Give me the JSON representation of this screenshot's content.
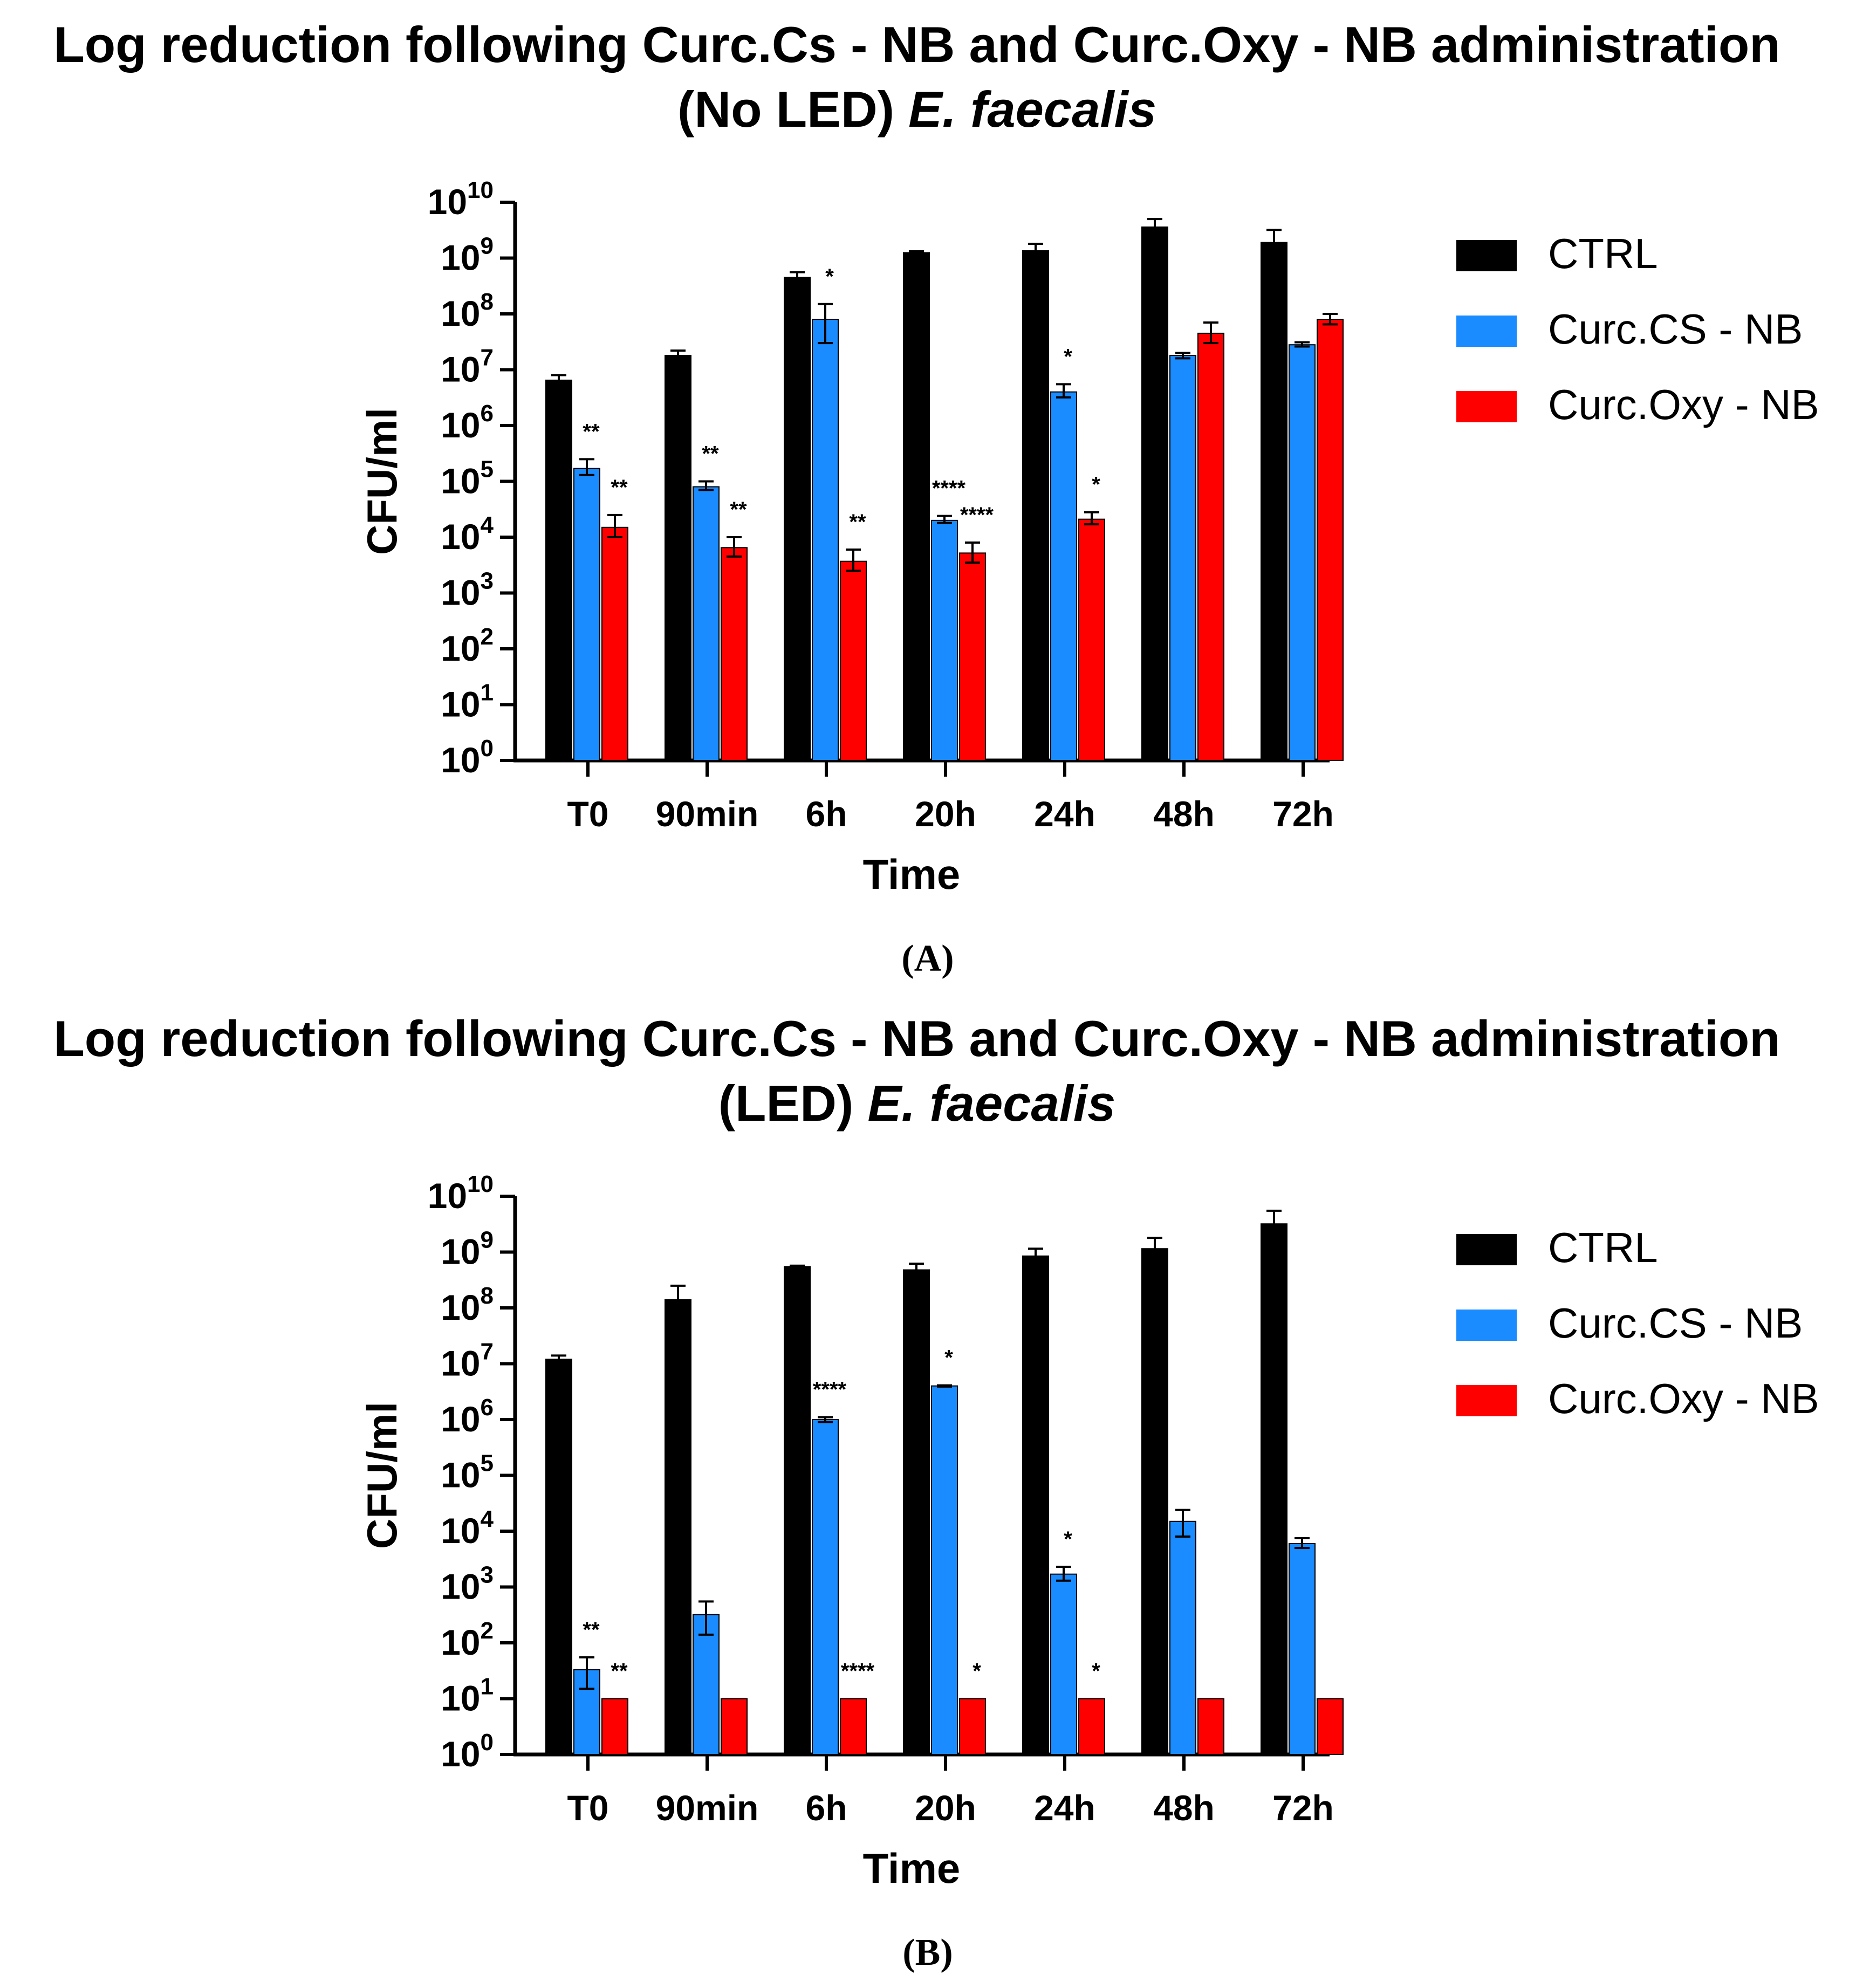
{
  "colors": {
    "CTRL": "#000000",
    "Curc.CS - NB": "#1a8cff",
    "Curc.Oxy - NB": "#ff0000"
  },
  "chart_data": [
    {
      "type": "bar",
      "panel_label": "(A)",
      "title_line1": "Log reduction following Curc.Cs - NB and Curc.Oxy - NB administration",
      "title_line2_prefix": "(No LED)",
      "title_line2_italic": "E. faecalis",
      "xlabel": "Time",
      "ylabel": "CFU/ml",
      "y_scale": "log",
      "ylim": [
        1,
        10000000000
      ],
      "yticks": [
        {
          "base": "10",
          "exp": "0"
        },
        {
          "base": "10",
          "exp": "1"
        },
        {
          "base": "10",
          "exp": "2"
        },
        {
          "base": "10",
          "exp": "3"
        },
        {
          "base": "10",
          "exp": "4"
        },
        {
          "base": "10",
          "exp": "5"
        },
        {
          "base": "10",
          "exp": "6"
        },
        {
          "base": "10",
          "exp": "7"
        },
        {
          "base": "10",
          "exp": "8"
        },
        {
          "base": "10",
          "exp": "9"
        },
        {
          "base": "10",
          "exp": "10"
        }
      ],
      "legend_position": "right",
      "categories": [
        "T0",
        "90min",
        "6h",
        "20h",
        "24h",
        "48h",
        "72h"
      ],
      "series": [
        {
          "name": "CTRL",
          "values": [
            6500000,
            18000000,
            450000000,
            1250000000,
            1350000000,
            3600000000,
            1900000000
          ],
          "err_hi": [
            8000000,
            22000000,
            560000000,
            1320000000,
            1800000000,
            5000000000,
            3200000000
          ],
          "err_lo": [
            5500000,
            16000000,
            380000000,
            1200000000,
            1100000000,
            3000000000,
            1500000000
          ],
          "sig": [
            "",
            "",
            "",
            "",
            "",
            "",
            ""
          ]
        },
        {
          "name": "Curc.CS - NB",
          "values": [
            170000,
            80000,
            80000000,
            20000,
            4000000,
            18000000,
            28000000
          ],
          "err_hi": [
            250000,
            100000,
            150000000,
            24000,
            5500000,
            20000000,
            31000000
          ],
          "err_lo": [
            130000,
            70000,
            30000000,
            18000,
            3200000,
            16000000,
            26000000
          ],
          "sig": [
            "**",
            "**",
            "*",
            "****",
            "*",
            "",
            ""
          ]
        },
        {
          "name": "Curc.Oxy - NB",
          "values": [
            15000,
            6500,
            3700,
            5200,
            21000,
            45000000,
            80000000
          ],
          "err_hi": [
            25000,
            10000,
            6000,
            8000,
            28000,
            70000000,
            100000000
          ],
          "err_lo": [
            10000,
            4500,
            2500,
            3500,
            17000,
            30000000,
            65000000
          ],
          "sig": [
            "**",
            "**",
            "**",
            "****",
            "*",
            "",
            ""
          ]
        }
      ]
    },
    {
      "type": "bar",
      "panel_label": "(B)",
      "title_line1": "Log reduction following Curc.Cs - NB and Curc.Oxy - NB administration",
      "title_line2_prefix": "(LED)",
      "title_line2_italic": "E. faecalis",
      "xlabel": "Time",
      "ylabel": "CFU/ml",
      "y_scale": "log",
      "ylim": [
        1,
        10000000000
      ],
      "yticks": [
        {
          "base": "10",
          "exp": "0"
        },
        {
          "base": "10",
          "exp": "1"
        },
        {
          "base": "10",
          "exp": "2"
        },
        {
          "base": "10",
          "exp": "3"
        },
        {
          "base": "10",
          "exp": "4"
        },
        {
          "base": "10",
          "exp": "5"
        },
        {
          "base": "10",
          "exp": "6"
        },
        {
          "base": "10",
          "exp": "7"
        },
        {
          "base": "10",
          "exp": "8"
        },
        {
          "base": "10",
          "exp": "9"
        },
        {
          "base": "10",
          "exp": "10"
        }
      ],
      "legend_position": "right",
      "categories": [
        "T0",
        "90min",
        "6h",
        "20h",
        "24h",
        "48h",
        "72h"
      ],
      "series": [
        {
          "name": "CTRL",
          "values": [
            12000000,
            140000000,
            550000000,
            480000000,
            850000000,
            1150000000,
            3200000000
          ],
          "err_hi": [
            14000000,
            250000000,
            570000000,
            620000000,
            1150000000,
            1800000000,
            5500000000
          ],
          "err_lo": [
            10500000,
            110000000,
            530000000,
            400000000,
            700000000,
            900000000,
            2200000000
          ],
          "sig": [
            "",
            "",
            "",
            "",
            "",
            "",
            ""
          ]
        },
        {
          "name": "Curc.CS - NB",
          "values": [
            33,
            320,
            1000000,
            4000000,
            1700,
            15000,
            6000
          ],
          "err_hi": [
            55,
            550,
            1100000,
            4100000,
            2300,
            24000,
            7500
          ],
          "err_lo": [
            15,
            140,
            900000,
            3900000,
            1300,
            8000,
            5000
          ],
          "sig": [
            "**",
            "",
            "****",
            "*",
            "*",
            "",
            ""
          ]
        },
        {
          "name": "Curc.Oxy - NB",
          "values": [
            10,
            10,
            10,
            10,
            10,
            10,
            10
          ],
          "err_hi": [
            10,
            10,
            10,
            10,
            10,
            10,
            10
          ],
          "err_lo": [
            10,
            10,
            10,
            10,
            10,
            10,
            10
          ],
          "sig": [
            "**",
            "",
            "****",
            "*",
            "*",
            "",
            ""
          ]
        }
      ]
    }
  ]
}
